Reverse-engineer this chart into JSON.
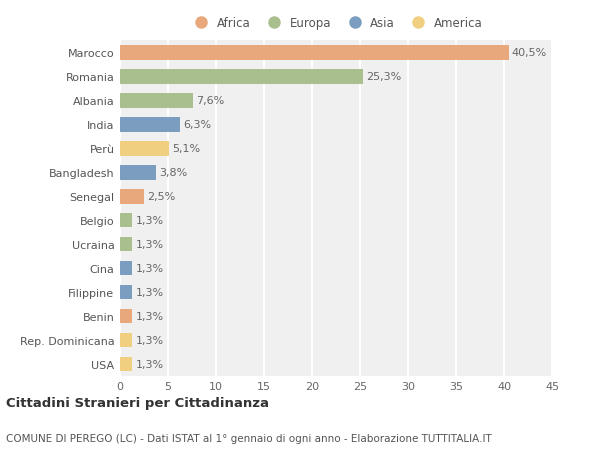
{
  "countries": [
    "Marocco",
    "Romania",
    "Albania",
    "India",
    "Perù",
    "Bangladesh",
    "Senegal",
    "Belgio",
    "Ucraina",
    "Cina",
    "Filippine",
    "Benin",
    "Rep. Dominicana",
    "USA"
  ],
  "values": [
    40.5,
    25.3,
    7.6,
    6.3,
    5.1,
    3.8,
    2.5,
    1.3,
    1.3,
    1.3,
    1.3,
    1.3,
    1.3,
    1.3
  ],
  "labels": [
    "40,5%",
    "25,3%",
    "7,6%",
    "6,3%",
    "5,1%",
    "3,8%",
    "2,5%",
    "1,3%",
    "1,3%",
    "1,3%",
    "1,3%",
    "1,3%",
    "1,3%",
    "1,3%"
  ],
  "continents": [
    "Africa",
    "Europa",
    "Europa",
    "Asia",
    "America",
    "Asia",
    "Africa",
    "Europa",
    "Europa",
    "Asia",
    "Asia",
    "Africa",
    "America",
    "America"
  ],
  "continent_colors": {
    "Africa": "#E8A87C",
    "Europa": "#AABF8E",
    "Asia": "#7B9DC0",
    "America": "#F0D080"
  },
  "legend_order": [
    "Africa",
    "Europa",
    "Asia",
    "America"
  ],
  "title": "Cittadini Stranieri per Cittadinanza",
  "subtitle": "COMUNE DI PEREGO (LC) - Dati ISTAT al 1° gennaio di ogni anno - Elaborazione TUTTITALIA.IT",
  "xlabel_ticks": [
    0,
    5,
    10,
    15,
    20,
    25,
    30,
    35,
    40,
    45
  ],
  "xlim": [
    0,
    45
  ],
  "background_color": "#ffffff",
  "plot_bg_color": "#f0f0f0",
  "grid_color": "#ffffff",
  "bar_height": 0.6,
  "title_fontsize": 9.5,
  "subtitle_fontsize": 7.5,
  "label_fontsize": 8,
  "tick_fontsize": 8,
  "legend_fontsize": 8.5
}
